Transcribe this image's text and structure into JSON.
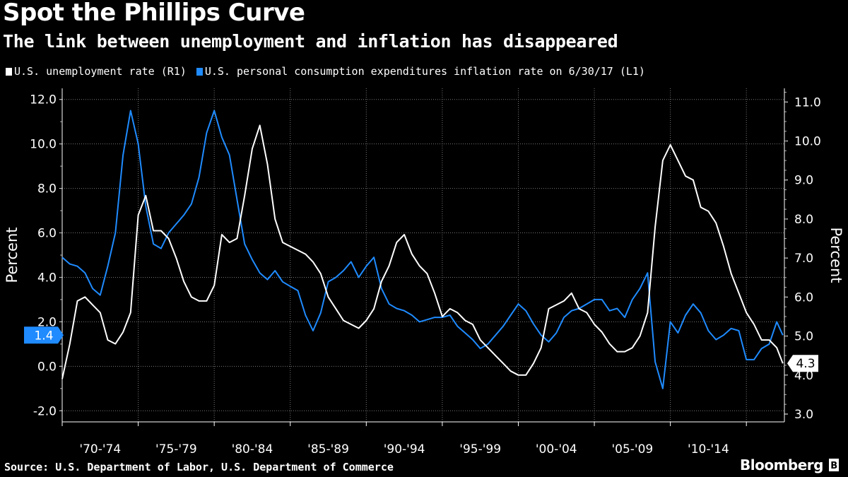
{
  "title": "Spot the Phillips Curve",
  "subtitle": "The link between unemployment and inflation has disappeared",
  "legend": [
    {
      "label": "U.S. unemployment rate (R1)",
      "color": "#ffffff"
    },
    {
      "label": "U.S. personal consumption expenditures inflation rate on 6/30/17 (L1)",
      "color": "#1f8bff"
    }
  ],
  "source": "Source: U.S. Department of Labor, U.S. Department of Commerce",
  "brand": "Bloomberg",
  "chart_data": {
    "type": "line",
    "x_ticks": [
      "'70-'74",
      "'75-'79",
      "'80-'84",
      "'85-'89",
      "'90-'94",
      "'95-'99",
      "'00-'04",
      "'05-'09",
      "'10-'14"
    ],
    "xlim": [
      1970,
      2017.5
    ],
    "left_axis": {
      "label": "Percent",
      "ylim": [
        -2.5,
        12.5
      ],
      "ticks": [
        "-2.0",
        "0.0",
        "2.0",
        "4.0",
        "6.0",
        "8.0",
        "10.0",
        "12.0"
      ]
    },
    "right_axis": {
      "label": "Percent",
      "ylim": [
        2.8,
        11.35
      ],
      "ticks": [
        "3.0",
        "4.0",
        "5.0",
        "6.0",
        "7.0",
        "8.0",
        "9.0",
        "10.0",
        "11.0"
      ]
    },
    "grid": true,
    "last_value_labels": {
      "inflation": "1.4",
      "unemployment": "4.3"
    },
    "series": [
      {
        "name": "U.S. personal consumption expenditures inflation rate on 6/30/17",
        "axis": "left",
        "color": "#1f8bff",
        "x": [
          1970.0,
          1970.5,
          1971.0,
          1971.5,
          1972.0,
          1972.5,
          1973.0,
          1973.5,
          1974.0,
          1974.5,
          1975.0,
          1975.5,
          1976.0,
          1976.5,
          1977.0,
          1977.5,
          1978.0,
          1978.5,
          1979.0,
          1979.5,
          1980.0,
          1980.5,
          1981.0,
          1981.5,
          1982.0,
          1982.5,
          1983.0,
          1983.5,
          1984.0,
          1984.5,
          1985.0,
          1985.5,
          1986.0,
          1986.5,
          1987.0,
          1987.5,
          1988.0,
          1988.5,
          1989.0,
          1989.5,
          1990.0,
          1990.5,
          1991.0,
          1991.5,
          1992.0,
          1992.5,
          1993.0,
          1993.5,
          1994.0,
          1994.5,
          1995.0,
          1995.5,
          1996.0,
          1996.5,
          1997.0,
          1997.5,
          1998.0,
          1998.5,
          1999.0,
          1999.5,
          2000.0,
          2000.5,
          2001.0,
          2001.5,
          2002.0,
          2002.5,
          2003.0,
          2003.5,
          2004.0,
          2004.5,
          2005.0,
          2005.5,
          2006.0,
          2006.5,
          2007.0,
          2007.5,
          2008.0,
          2008.5,
          2009.0,
          2009.5,
          2010.0,
          2010.5,
          2011.0,
          2011.5,
          2012.0,
          2012.5,
          2013.0,
          2013.5,
          2014.0,
          2014.5,
          2015.0,
          2015.5,
          2016.0,
          2016.5,
          2017.0,
          2017.4
        ],
        "y": [
          4.9,
          4.6,
          4.5,
          4.2,
          3.5,
          3.2,
          4.5,
          6.0,
          9.5,
          11.5,
          10.0,
          7.2,
          5.5,
          5.3,
          6.0,
          6.4,
          6.8,
          7.3,
          8.5,
          10.5,
          11.5,
          10.3,
          9.5,
          7.5,
          5.5,
          4.8,
          4.2,
          3.9,
          4.3,
          3.8,
          3.6,
          3.4,
          2.3,
          1.6,
          2.4,
          3.8,
          4.0,
          4.3,
          4.7,
          4.0,
          4.5,
          4.9,
          3.5,
          2.8,
          2.6,
          2.5,
          2.3,
          2.0,
          2.1,
          2.2,
          2.2,
          2.3,
          1.8,
          1.5,
          1.2,
          0.8,
          1.0,
          1.4,
          1.8,
          2.3,
          2.8,
          2.5,
          1.9,
          1.4,
          1.1,
          1.5,
          2.2,
          2.5,
          2.6,
          2.8,
          3.0,
          3.0,
          2.5,
          2.6,
          2.2,
          3.0,
          3.5,
          4.2,
          0.2,
          -1.0,
          2.0,
          1.5,
          2.3,
          2.8,
          2.4,
          1.6,
          1.2,
          1.4,
          1.7,
          1.6,
          0.3,
          0.3,
          0.8,
          1.0,
          2.0,
          1.4
        ]
      },
      {
        "name": "U.S. unemployment rate",
        "axis": "right",
        "color": "#ffffff",
        "x": [
          1970.0,
          1970.5,
          1971.0,
          1971.5,
          1972.0,
          1972.5,
          1973.0,
          1973.5,
          1974.0,
          1974.5,
          1975.0,
          1975.5,
          1976.0,
          1976.5,
          1977.0,
          1977.5,
          1978.0,
          1978.5,
          1979.0,
          1979.5,
          1980.0,
          1980.5,
          1981.0,
          1981.5,
          1982.0,
          1982.5,
          1983.0,
          1983.5,
          1984.0,
          1984.5,
          1985.0,
          1985.5,
          1986.0,
          1986.5,
          1987.0,
          1987.5,
          1988.0,
          1988.5,
          1989.0,
          1989.5,
          1990.0,
          1990.5,
          1991.0,
          1991.5,
          1992.0,
          1992.5,
          1993.0,
          1993.5,
          1994.0,
          1994.5,
          1995.0,
          1995.5,
          1996.0,
          1996.5,
          1997.0,
          1997.5,
          1998.0,
          1998.5,
          1999.0,
          1999.5,
          2000.0,
          2000.5,
          2001.0,
          2001.5,
          2002.0,
          2002.5,
          2003.0,
          2003.5,
          2004.0,
          2004.5,
          2005.0,
          2005.5,
          2006.0,
          2006.5,
          2007.0,
          2007.5,
          2008.0,
          2008.5,
          2009.0,
          2009.5,
          2010.0,
          2010.5,
          2011.0,
          2011.5,
          2012.0,
          2012.5,
          2013.0,
          2013.5,
          2014.0,
          2014.5,
          2015.0,
          2015.5,
          2016.0,
          2016.5,
          2017.0,
          2017.4
        ],
        "y": [
          3.9,
          4.8,
          5.9,
          6.0,
          5.8,
          5.6,
          4.9,
          4.8,
          5.1,
          5.6,
          8.1,
          8.6,
          7.7,
          7.7,
          7.5,
          7.0,
          6.4,
          6.0,
          5.9,
          5.9,
          6.3,
          7.6,
          7.4,
          7.5,
          8.6,
          9.8,
          10.4,
          9.4,
          8.0,
          7.4,
          7.3,
          7.2,
          7.1,
          6.9,
          6.6,
          6.0,
          5.7,
          5.4,
          5.3,
          5.2,
          5.4,
          5.7,
          6.4,
          6.8,
          7.4,
          7.6,
          7.1,
          6.8,
          6.6,
          6.1,
          5.5,
          5.7,
          5.6,
          5.4,
          5.3,
          4.9,
          4.7,
          4.5,
          4.3,
          4.1,
          4.0,
          4.0,
          4.3,
          4.7,
          5.7,
          5.8,
          5.9,
          6.1,
          5.7,
          5.6,
          5.3,
          5.1,
          4.8,
          4.6,
          4.6,
          4.7,
          5.0,
          5.6,
          7.8,
          9.5,
          9.9,
          9.5,
          9.1,
          9.0,
          8.3,
          8.2,
          7.9,
          7.3,
          6.6,
          6.1,
          5.6,
          5.3,
          4.9,
          4.9,
          4.7,
          4.3
        ]
      }
    ]
  }
}
